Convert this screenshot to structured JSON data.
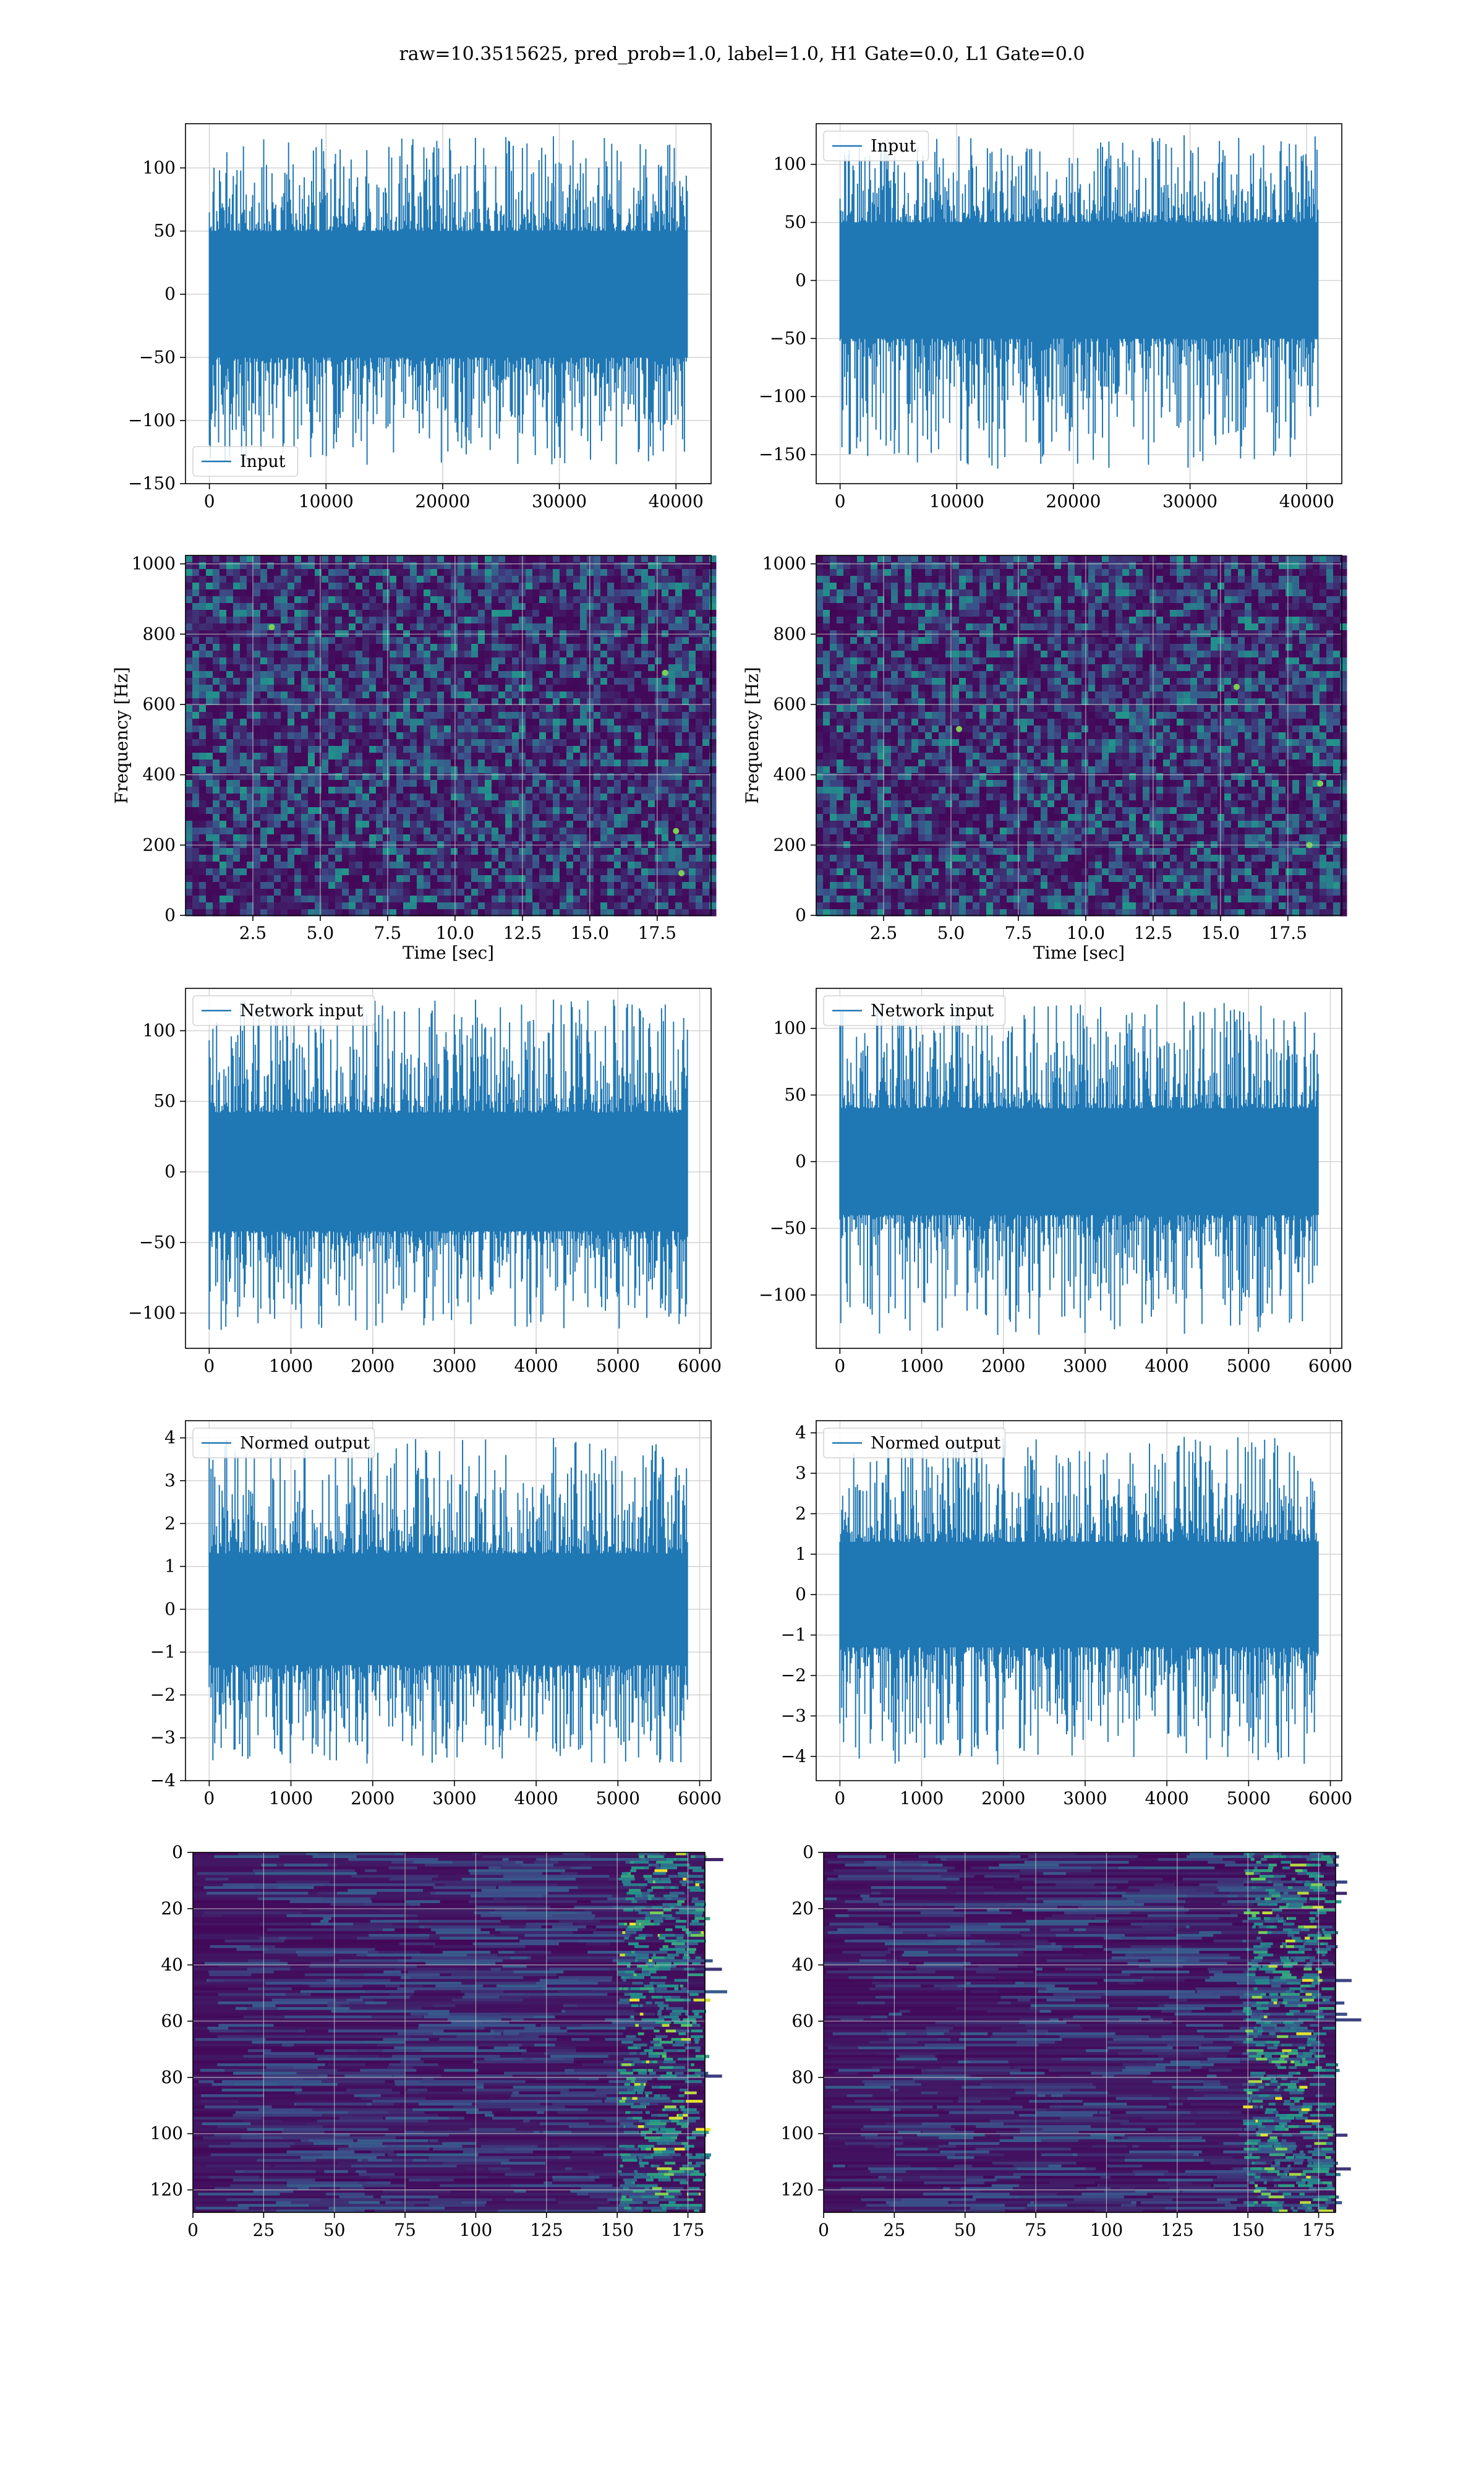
{
  "figure": {
    "title": "raw=10.3515625, pred_prob=1.0, label=1.0, H1 Gate=0.0, L1 Gate=0.0"
  },
  "colors": {
    "line": "#1f77b4",
    "grid": "#d3d3d3",
    "viridis_low": "#440154",
    "viridis_mid": "#21918c",
    "viridis_high": "#fde725"
  },
  "chart_data": [
    {
      "id": "h1-input",
      "type": "line",
      "series": [
        {
          "name": "Input",
          "length": 40960
        }
      ],
      "legend_loc": "lower-left",
      "xlim": [
        -2048,
        43008
      ],
      "ylim": [
        -150,
        135
      ],
      "xticks": [
        0,
        10000,
        20000,
        30000,
        40000
      ],
      "yticks": [
        -150,
        -100,
        -50,
        0,
        50,
        100
      ],
      "x_range": [
        0,
        40960
      ],
      "envelope": {
        "typical": [
          -50,
          50
        ],
        "extremes": [
          -135,
          125
        ]
      },
      "xlabel": "",
      "ylabel": "",
      "grid": true
    },
    {
      "id": "l1-input",
      "type": "line",
      "series": [
        {
          "name": "Input",
          "length": 40960
        }
      ],
      "legend_loc": "top-left",
      "xlim": [
        -2048,
        43008
      ],
      "ylim": [
        -175,
        135
      ],
      "xticks": [
        0,
        10000,
        20000,
        30000,
        40000
      ],
      "yticks": [
        -150,
        -100,
        -50,
        0,
        50,
        100
      ],
      "x_range": [
        0,
        40960
      ],
      "envelope": {
        "typical": [
          -50,
          50
        ],
        "extremes": [
          -162,
          125
        ]
      },
      "xlabel": "",
      "ylabel": "",
      "grid": true
    },
    {
      "id": "h1-spectrogram",
      "type": "heatmap",
      "xlim": [
        0,
        19.5
      ],
      "ylim": [
        0,
        1024
      ],
      "xticks": [
        2.5,
        5.0,
        7.5,
        10.0,
        12.5,
        15.0,
        17.5
      ],
      "yticks": [
        0,
        200,
        400,
        600,
        800,
        1000
      ],
      "xlabel": "Time [sec]",
      "ylabel": "Frequency [Hz]",
      "grid": true,
      "bright_spots": [
        [
          18.2,
          240
        ],
        [
          18.4,
          120
        ],
        [
          3.2,
          820
        ],
        [
          17.8,
          690
        ]
      ]
    },
    {
      "id": "l1-spectrogram",
      "type": "heatmap",
      "xlim": [
        0,
        19.5
      ],
      "ylim": [
        0,
        1024
      ],
      "xticks": [
        2.5,
        5.0,
        7.5,
        10.0,
        12.5,
        15.0,
        17.5
      ],
      "yticks": [
        0,
        200,
        400,
        600,
        800,
        1000
      ],
      "xlabel": "Time [sec]",
      "ylabel": "Frequency [Hz]",
      "grid": true,
      "bright_spots": [
        [
          18.7,
          375
        ],
        [
          18.3,
          200
        ],
        [
          15.6,
          650
        ],
        [
          5.3,
          530
        ]
      ]
    },
    {
      "id": "h1-network-input",
      "type": "line",
      "series": [
        {
          "name": "Network input",
          "length": 5850
        }
      ],
      "legend_loc": "top-left",
      "xlim": [
        -290,
        6140
      ],
      "ylim": [
        -125,
        130
      ],
      "xticks": [
        0,
        1000,
        2000,
        3000,
        4000,
        5000,
        6000
      ],
      "yticks": [
        -100,
        -50,
        0,
        50,
        100
      ],
      "x_range": [
        0,
        5850
      ],
      "envelope": {
        "typical": [
          -42,
          42
        ],
        "extremes": [
          -112,
          122
        ]
      },
      "xlabel": "",
      "ylabel": "",
      "grid": true
    },
    {
      "id": "l1-network-input",
      "type": "line",
      "series": [
        {
          "name": "Network input",
          "length": 5850
        }
      ],
      "legend_loc": "top-left",
      "xlim": [
        -290,
        6140
      ],
      "ylim": [
        -140,
        130
      ],
      "xticks": [
        0,
        1000,
        2000,
        3000,
        4000,
        5000,
        6000
      ],
      "yticks": [
        -100,
        -50,
        0,
        50,
        100
      ],
      "x_range": [
        0,
        5850
      ],
      "envelope": {
        "typical": [
          -40,
          40
        ],
        "extremes": [
          -130,
          120
        ]
      },
      "xlabel": "",
      "ylabel": "",
      "grid": true
    },
    {
      "id": "h1-normed-output",
      "type": "line",
      "series": [
        {
          "name": "Normed output",
          "length": 5850
        }
      ],
      "legend_loc": "top-left",
      "xlim": [
        -290,
        6140
      ],
      "ylim": [
        -4,
        4.4
      ],
      "xticks": [
        0,
        1000,
        2000,
        3000,
        4000,
        5000,
        6000
      ],
      "yticks": [
        -4,
        -3,
        -2,
        -1,
        0,
        1,
        2,
        3,
        4
      ],
      "x_range": [
        0,
        5850
      ],
      "envelope": {
        "typical": [
          -1.3,
          1.3
        ],
        "extremes": [
          -3.6,
          4.0
        ]
      },
      "xlabel": "",
      "ylabel": "",
      "grid": true
    },
    {
      "id": "l1-normed-output",
      "type": "line",
      "series": [
        {
          "name": "Normed output",
          "length": 5850
        }
      ],
      "legend_loc": "top-left",
      "xlim": [
        -290,
        6140
      ],
      "ylim": [
        -4.6,
        4.3
      ],
      "xticks": [
        0,
        1000,
        2000,
        3000,
        4000,
        5000,
        6000
      ],
      "yticks": [
        -4,
        -3,
        -2,
        -1,
        0,
        1,
        2,
        3,
        4
      ],
      "x_range": [
        0,
        5850
      ],
      "envelope": {
        "typical": [
          -1.3,
          1.3
        ],
        "extremes": [
          -4.2,
          3.9
        ]
      },
      "xlabel": "",
      "ylabel": "",
      "grid": true
    },
    {
      "id": "h1-feature-map",
      "type": "heatmap",
      "xlim": [
        0,
        181
      ],
      "ylim": [
        128,
        0
      ],
      "xticks": [
        0,
        25,
        50,
        75,
        100,
        125,
        150,
        175
      ],
      "yticks": [
        0,
        20,
        40,
        60,
        80,
        100,
        120
      ],
      "xlabel": "",
      "ylabel": "",
      "grid": true,
      "active_band": [
        150,
        178
      ]
    },
    {
      "id": "l1-feature-map",
      "type": "heatmap",
      "xlim": [
        0,
        181
      ],
      "ylim": [
        128,
        0
      ],
      "xticks": [
        0,
        25,
        50,
        75,
        100,
        125,
        150,
        175
      ],
      "yticks": [
        0,
        20,
        40,
        60,
        80,
        100,
        120
      ],
      "xlabel": "",
      "ylabel": "",
      "grid": true,
      "active_band": [
        148,
        178
      ]
    }
  ]
}
